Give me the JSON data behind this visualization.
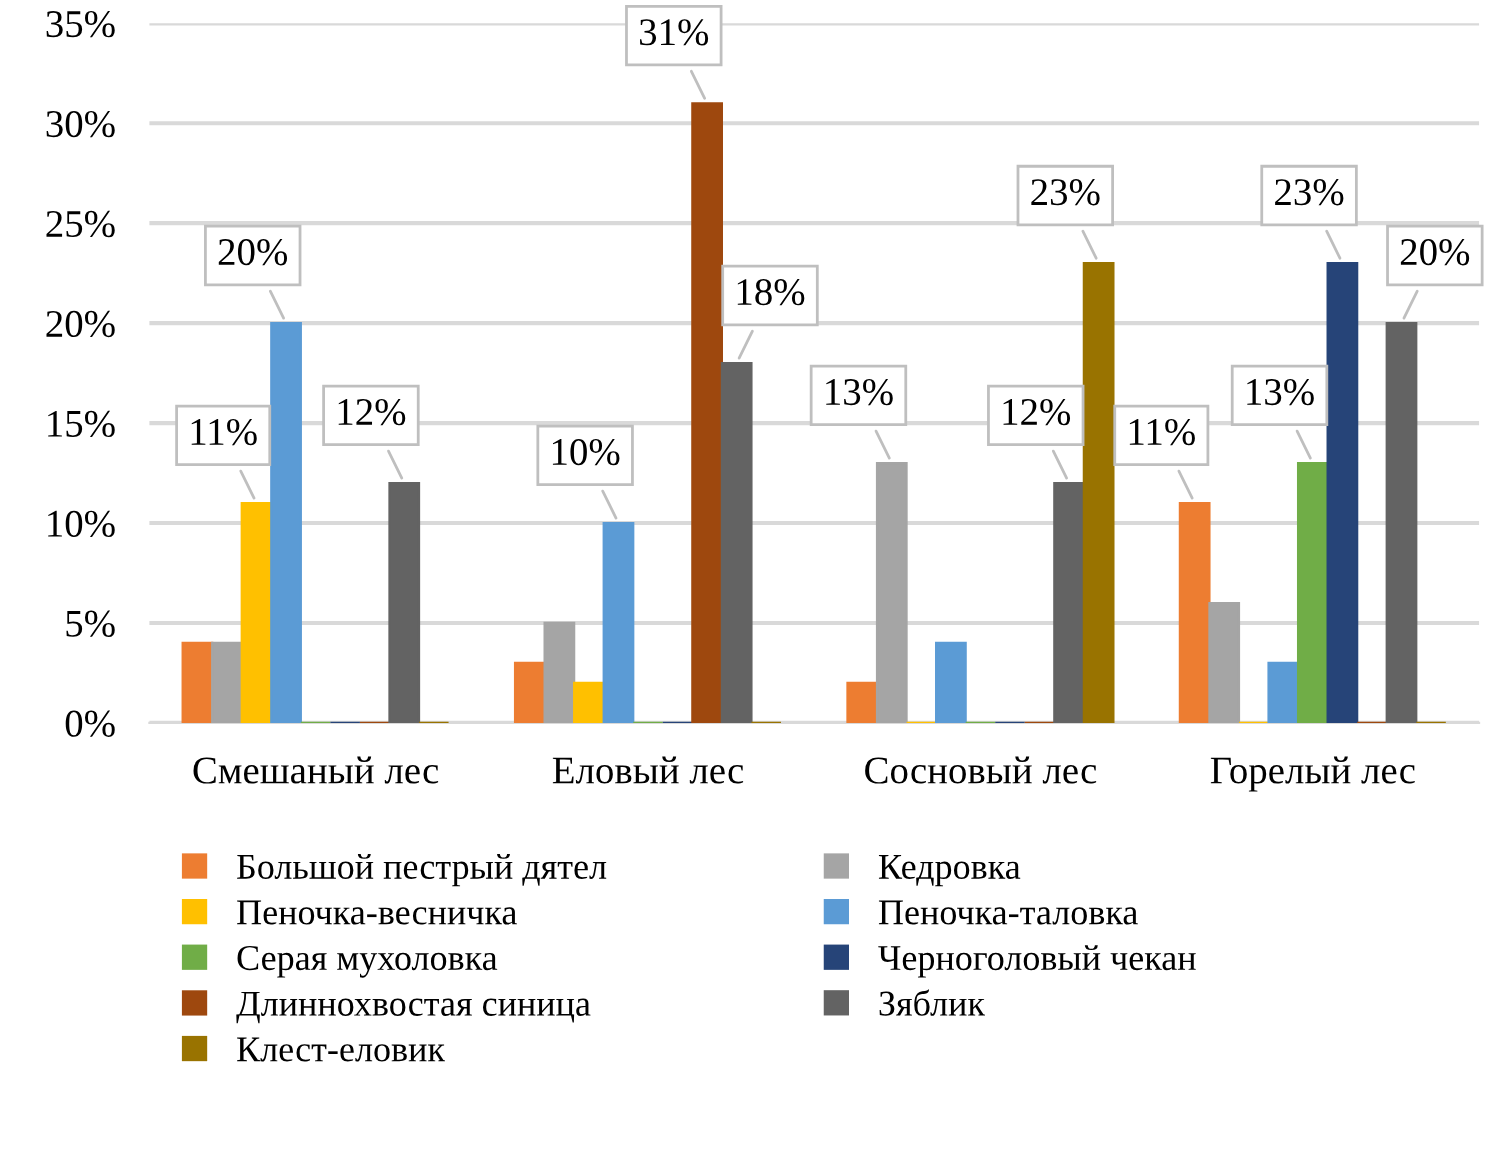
{
  "chart_data": {
    "type": "bar",
    "categories": [
      "Смешаный лес",
      "Еловый лес",
      "Сосновый лес",
      "Горелый лес"
    ],
    "series": [
      {
        "name": "Большой пестрый дятел",
        "color": "#ed7d31",
        "values": [
          4,
          3,
          2,
          11
        ],
        "value_labels": [
          null,
          null,
          null,
          "11%"
        ]
      },
      {
        "name": "Кедровка",
        "color": "#a5a5a5",
        "values": [
          4,
          5,
          13,
          6
        ],
        "value_labels": [
          null,
          null,
          "13%",
          null
        ]
      },
      {
        "name": "Пеночка-весничка",
        "color": "#ffc000",
        "values": [
          11,
          2,
          0,
          0
        ],
        "value_labels": [
          "11%",
          null,
          null,
          null
        ]
      },
      {
        "name": "Пеночка-таловка",
        "color": "#5b9bd5",
        "values": [
          20,
          10,
          4,
          3
        ],
        "value_labels": [
          "20%",
          "10%",
          null,
          null
        ]
      },
      {
        "name": "Серая мухоловка",
        "color": "#70ad47",
        "values": [
          0,
          0,
          0,
          13
        ],
        "value_labels": [
          null,
          null,
          null,
          "13%"
        ]
      },
      {
        "name": "Черноголовый чекан",
        "color": "#264478",
        "values": [
          0,
          0,
          0,
          23
        ],
        "value_labels": [
          null,
          null,
          null,
          "23%"
        ]
      },
      {
        "name": "Длиннохвостая синица",
        "color": "#9e480e",
        "values": [
          0,
          31,
          0,
          0
        ],
        "value_labels": [
          null,
          "31%",
          null,
          null
        ]
      },
      {
        "name": "Зяблик",
        "color": "#636363",
        "values": [
          12,
          18,
          12,
          20
        ],
        "value_labels": [
          "12%",
          "18%",
          "12%",
          "20%"
        ]
      },
      {
        "name": "Клест-еловик",
        "color": "#997300",
        "values": [
          0,
          0,
          23,
          0
        ],
        "value_labels": [
          null,
          null,
          "23%",
          null
        ]
      }
    ],
    "ylim": [
      0,
      35
    ],
    "yticks": [
      {
        "value": 0,
        "label": "0%"
      },
      {
        "value": 5,
        "label": "5%"
      },
      {
        "value": 10,
        "label": "10%"
      },
      {
        "value": 15,
        "label": "15%"
      },
      {
        "value": 20,
        "label": "20%"
      },
      {
        "value": 25,
        "label": "25%"
      },
      {
        "value": 30,
        "label": "30%"
      },
      {
        "value": 35,
        "label": "35%"
      }
    ],
    "grid": "y",
    "legend": "bottom"
  }
}
